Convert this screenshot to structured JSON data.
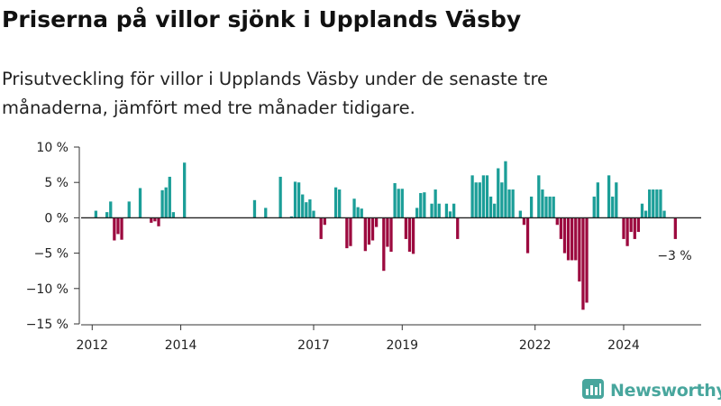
{
  "header": {
    "title": "Priserna på villor sjönk i Upplands Väsby",
    "subtitle": "Prisutveckling för villor i Upplands Väsby under de senaste tre månaderna, jämfört med tre månader tidigare."
  },
  "brand": {
    "name": "Newsworthy",
    "icon": "newsworthy-logo-icon"
  },
  "colors": {
    "positive": "#1b9e98",
    "negative": "#9c0a3f",
    "axis": "#333333",
    "brand": "#48a69d"
  },
  "chart_data": {
    "type": "bar",
    "title": "",
    "xlabel": "",
    "ylabel": "",
    "ylim": [
      -15,
      10
    ],
    "xlim": [
      "2011-10",
      "2025-10"
    ],
    "y_ticks": [
      10,
      5,
      0,
      -5,
      -10,
      -15
    ],
    "y_tick_labels": [
      "10 %",
      "5 %",
      "0 %",
      "−5 %",
      "−10 %",
      "−15 %"
    ],
    "x_ticks": [
      "2012-01",
      "2014-01",
      "2017-01",
      "2019-01",
      "2022-01",
      "2024-01"
    ],
    "x_tick_labels": [
      "2012",
      "2014",
      "2017",
      "2019",
      "2022",
      "2024"
    ],
    "grid": false,
    "legend": "none",
    "annotation": {
      "date": "2025-03",
      "text": "−3 %"
    },
    "series": [
      {
        "x": [
          "2012-01",
          "2012-02",
          "2012-03",
          "2012-04",
          "2012-05",
          "2012-06",
          "2012-07",
          "2012-08",
          "2012-09",
          "2012-10",
          "2012-11",
          "2012-12",
          "2013-01",
          "2013-02",
          "2013-03",
          "2013-04",
          "2013-05",
          "2013-06",
          "2013-07",
          "2013-08",
          "2013-09",
          "2013-10",
          "2013-11",
          "2013-12",
          "2014-01",
          "2014-02",
          "2015-06",
          "2015-07",
          "2015-08",
          "2015-09",
          "2015-10",
          "2015-11",
          "2015-12",
          "2016-01",
          "2016-02",
          "2016-03",
          "2016-04",
          "2016-05",
          "2016-06",
          "2016-07",
          "2016-08",
          "2016-09",
          "2016-10",
          "2016-11",
          "2016-12",
          "2017-01",
          "2017-02",
          "2017-03",
          "2017-04",
          "2017-05",
          "2017-06",
          "2017-07",
          "2017-08",
          "2017-09",
          "2017-10",
          "2017-11",
          "2017-12",
          "2018-01",
          "2018-02",
          "2018-03",
          "2018-04",
          "2018-05",
          "2018-06",
          "2018-07",
          "2018-08",
          "2018-09",
          "2018-10",
          "2018-11",
          "2018-12",
          "2019-01",
          "2019-02",
          "2019-03",
          "2019-04",
          "2019-05",
          "2019-06",
          "2019-07",
          "2019-08",
          "2019-09",
          "2019-10",
          "2019-11",
          "2019-12",
          "2020-01",
          "2020-02",
          "2020-03",
          "2020-04",
          "2020-05",
          "2020-06",
          "2020-07",
          "2020-08",
          "2020-09",
          "2020-10",
          "2020-11",
          "2020-12",
          "2021-01",
          "2021-02",
          "2021-03",
          "2021-04",
          "2021-05",
          "2021-06",
          "2021-07",
          "2021-08",
          "2021-09",
          "2021-10",
          "2021-11",
          "2021-12",
          "2022-01",
          "2022-02",
          "2022-03",
          "2022-04",
          "2022-05",
          "2022-06",
          "2022-07",
          "2022-08",
          "2022-09",
          "2022-10",
          "2022-11",
          "2022-12",
          "2023-01",
          "2023-02",
          "2023-03",
          "2023-04",
          "2023-05",
          "2023-06",
          "2023-07",
          "2023-08",
          "2023-09",
          "2023-10",
          "2023-11",
          "2023-12",
          "2024-01",
          "2024-02",
          "2024-03",
          "2024-04",
          "2024-05",
          "2024-06",
          "2024-07",
          "2024-08",
          "2024-09",
          "2024-10",
          "2024-11",
          "2024-12",
          "2025-01",
          "2025-02",
          "2025-03"
        ],
        "values": [
          0,
          1,
          0,
          0,
          0.8,
          2.3,
          -3.2,
          -2.3,
          -3.1,
          0,
          2.3,
          0,
          0,
          4.2,
          0,
          0,
          -0.7,
          -0.5,
          -1.2,
          3.9,
          4.3,
          5.8,
          0.8,
          0,
          0,
          7.8,
          0,
          0,
          0,
          2.5,
          0,
          0,
          1.4,
          0,
          0,
          0,
          5.8,
          0,
          0,
          0.2,
          5.1,
          5,
          3.3,
          2.2,
          2.6,
          1,
          0,
          -3,
          -1,
          0,
          0,
          4.3,
          4,
          0,
          -4.3,
          -4,
          2.7,
          1.5,
          1.3,
          -4.7,
          -3.8,
          -3.2,
          -1.3,
          0,
          -7.5,
          -4.1,
          -4.8,
          4.9,
          4.1,
          4.1,
          -3,
          -4.8,
          -5.1,
          1.4,
          3.5,
          3.6,
          0,
          2,
          4,
          2,
          0,
          2,
          0.9,
          2,
          -3,
          0,
          0,
          0,
          6,
          5,
          5,
          6,
          6,
          3,
          2,
          7,
          5,
          8,
          4,
          4,
          0,
          1,
          -1,
          -5,
          3,
          0,
          6,
          4,
          3,
          3,
          3,
          -1,
          -3,
          -5,
          -6,
          -6,
          -6,
          -9,
          -13,
          -12,
          0,
          3,
          5,
          0,
          0,
          6,
          3,
          5,
          0,
          -3,
          -4,
          -2,
          -3,
          -2,
          2,
          1,
          4,
          4,
          4,
          4,
          1,
          0,
          0,
          -3
        ]
      }
    ]
  }
}
